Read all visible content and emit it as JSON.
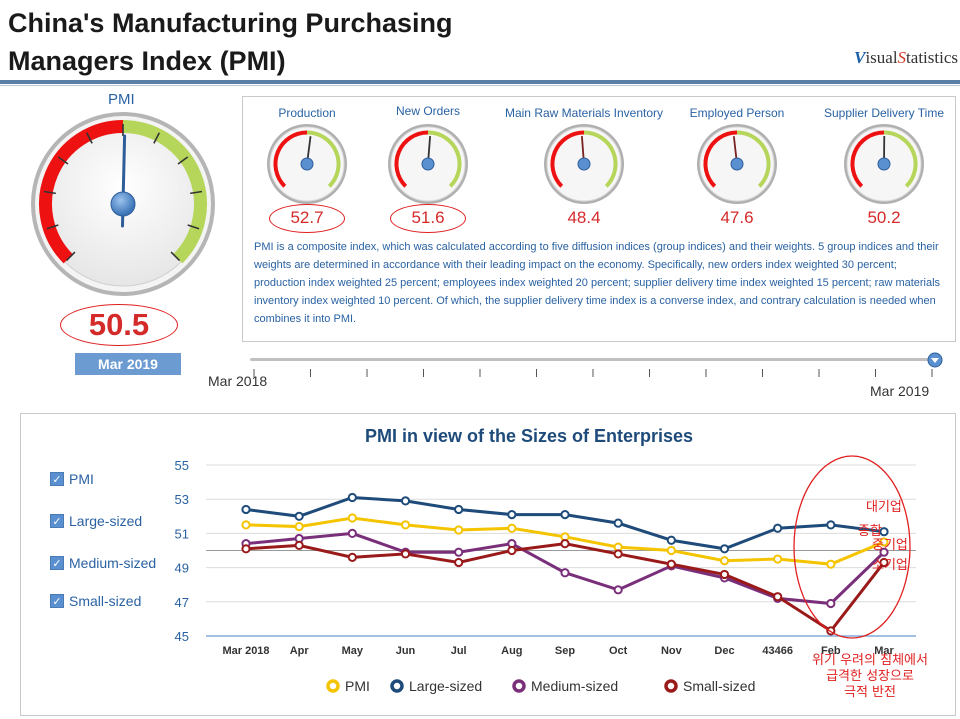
{
  "header": {
    "title_line1": "China's Manufacturing Purchasing",
    "title_line2": "Managers Index (PMI)",
    "brand_v": "V",
    "brand_isual": "isual",
    "brand_s": "S",
    "brand_tatistics": "tatistics"
  },
  "pmi_gauge": {
    "label": "PMI",
    "value": "50.5",
    "value_num": 50.5,
    "date": "Mar 2019"
  },
  "sub_gauges": [
    {
      "title": "Production",
      "value": "52.7",
      "value_num": 52.7
    },
    {
      "title": "New Orders",
      "value": "51.6",
      "value_num": 51.6
    },
    {
      "title": "Main Raw Materials Inventory",
      "value": "48.4",
      "value_num": 48.4
    },
    {
      "title": "Employed Person",
      "value": "47.6",
      "value_num": 47.6
    },
    {
      "title": "Supplier Delivery Time",
      "value": "50.2",
      "value_num": 50.2
    }
  ],
  "description": "PMI is a composite index, which was calculated according to five diffusion indices (group indices) and their weights. 5 group indices and their weights are determined in accordance with their leading impact on the economy. Specifically, new orders index weighted 30 percent; production index weighted 25 percent; employees index weighted 20 percent; supplier delivery time index weighted 15 percent; raw materials inventory index weighted 10 percent. Of which, the supplier delivery time index is a converse index, and contrary calculation is needed when combines it into PMI.",
  "timeline": {
    "start": "Mar 2018",
    "end": "Mar 2019"
  },
  "checkboxes": [
    {
      "label": "PMI",
      "mark": "✓"
    },
    {
      "label": "Large-sized",
      "mark": "✓"
    },
    {
      "label": "Medium-sized",
      "mark": "✓"
    },
    {
      "label": "Small-sized",
      "mark": "✓"
    }
  ],
  "annotations": {
    "right_line1": "대기업",
    "right_line2": "중기업",
    "right_line3": "소기업",
    "overlap": "종합",
    "bottom_line1": "위기 우려의 침체에서",
    "bottom_line2": "급격한 성장으로",
    "bottom_line3": "극적 반전"
  },
  "chart_data": {
    "type": "line",
    "title": "PMI in view of the Sizes of Enterprises",
    "categories": [
      "Mar 2018",
      "Apr",
      "May",
      "Jun",
      "Jul",
      "Aug",
      "Sep",
      "Oct",
      "Nov",
      "Dec",
      "43466",
      "Feb",
      "Mar"
    ],
    "ylim": [
      45,
      55
    ],
    "yticks": [
      "55",
      "53",
      "51",
      "49",
      "47",
      "45"
    ],
    "reference_line": 50,
    "series": [
      {
        "name": "PMI",
        "color": "#f5c400",
        "values": [
          51.5,
          51.4,
          51.9,
          51.5,
          51.2,
          51.3,
          50.8,
          50.2,
          50.0,
          49.4,
          49.5,
          49.2,
          50.5
        ]
      },
      {
        "name": "Large-sized",
        "color": "#1e4b7a",
        "values": [
          52.4,
          52.0,
          53.1,
          52.9,
          52.4,
          52.1,
          52.1,
          51.6,
          50.6,
          50.1,
          51.3,
          51.5,
          51.1
        ]
      },
      {
        "name": "Medium-sized",
        "color": "#7a2f7a",
        "values": [
          50.4,
          50.7,
          51.0,
          49.9,
          49.9,
          50.4,
          48.7,
          47.7,
          49.1,
          48.4,
          47.2,
          46.9,
          49.9
        ]
      },
      {
        "name": "Small-sized",
        "color": "#9a1a1a",
        "values": [
          50.1,
          50.3,
          49.6,
          49.8,
          49.3,
          50.0,
          50.4,
          49.8,
          49.2,
          48.6,
          47.3,
          45.3,
          49.3
        ]
      }
    ]
  }
}
